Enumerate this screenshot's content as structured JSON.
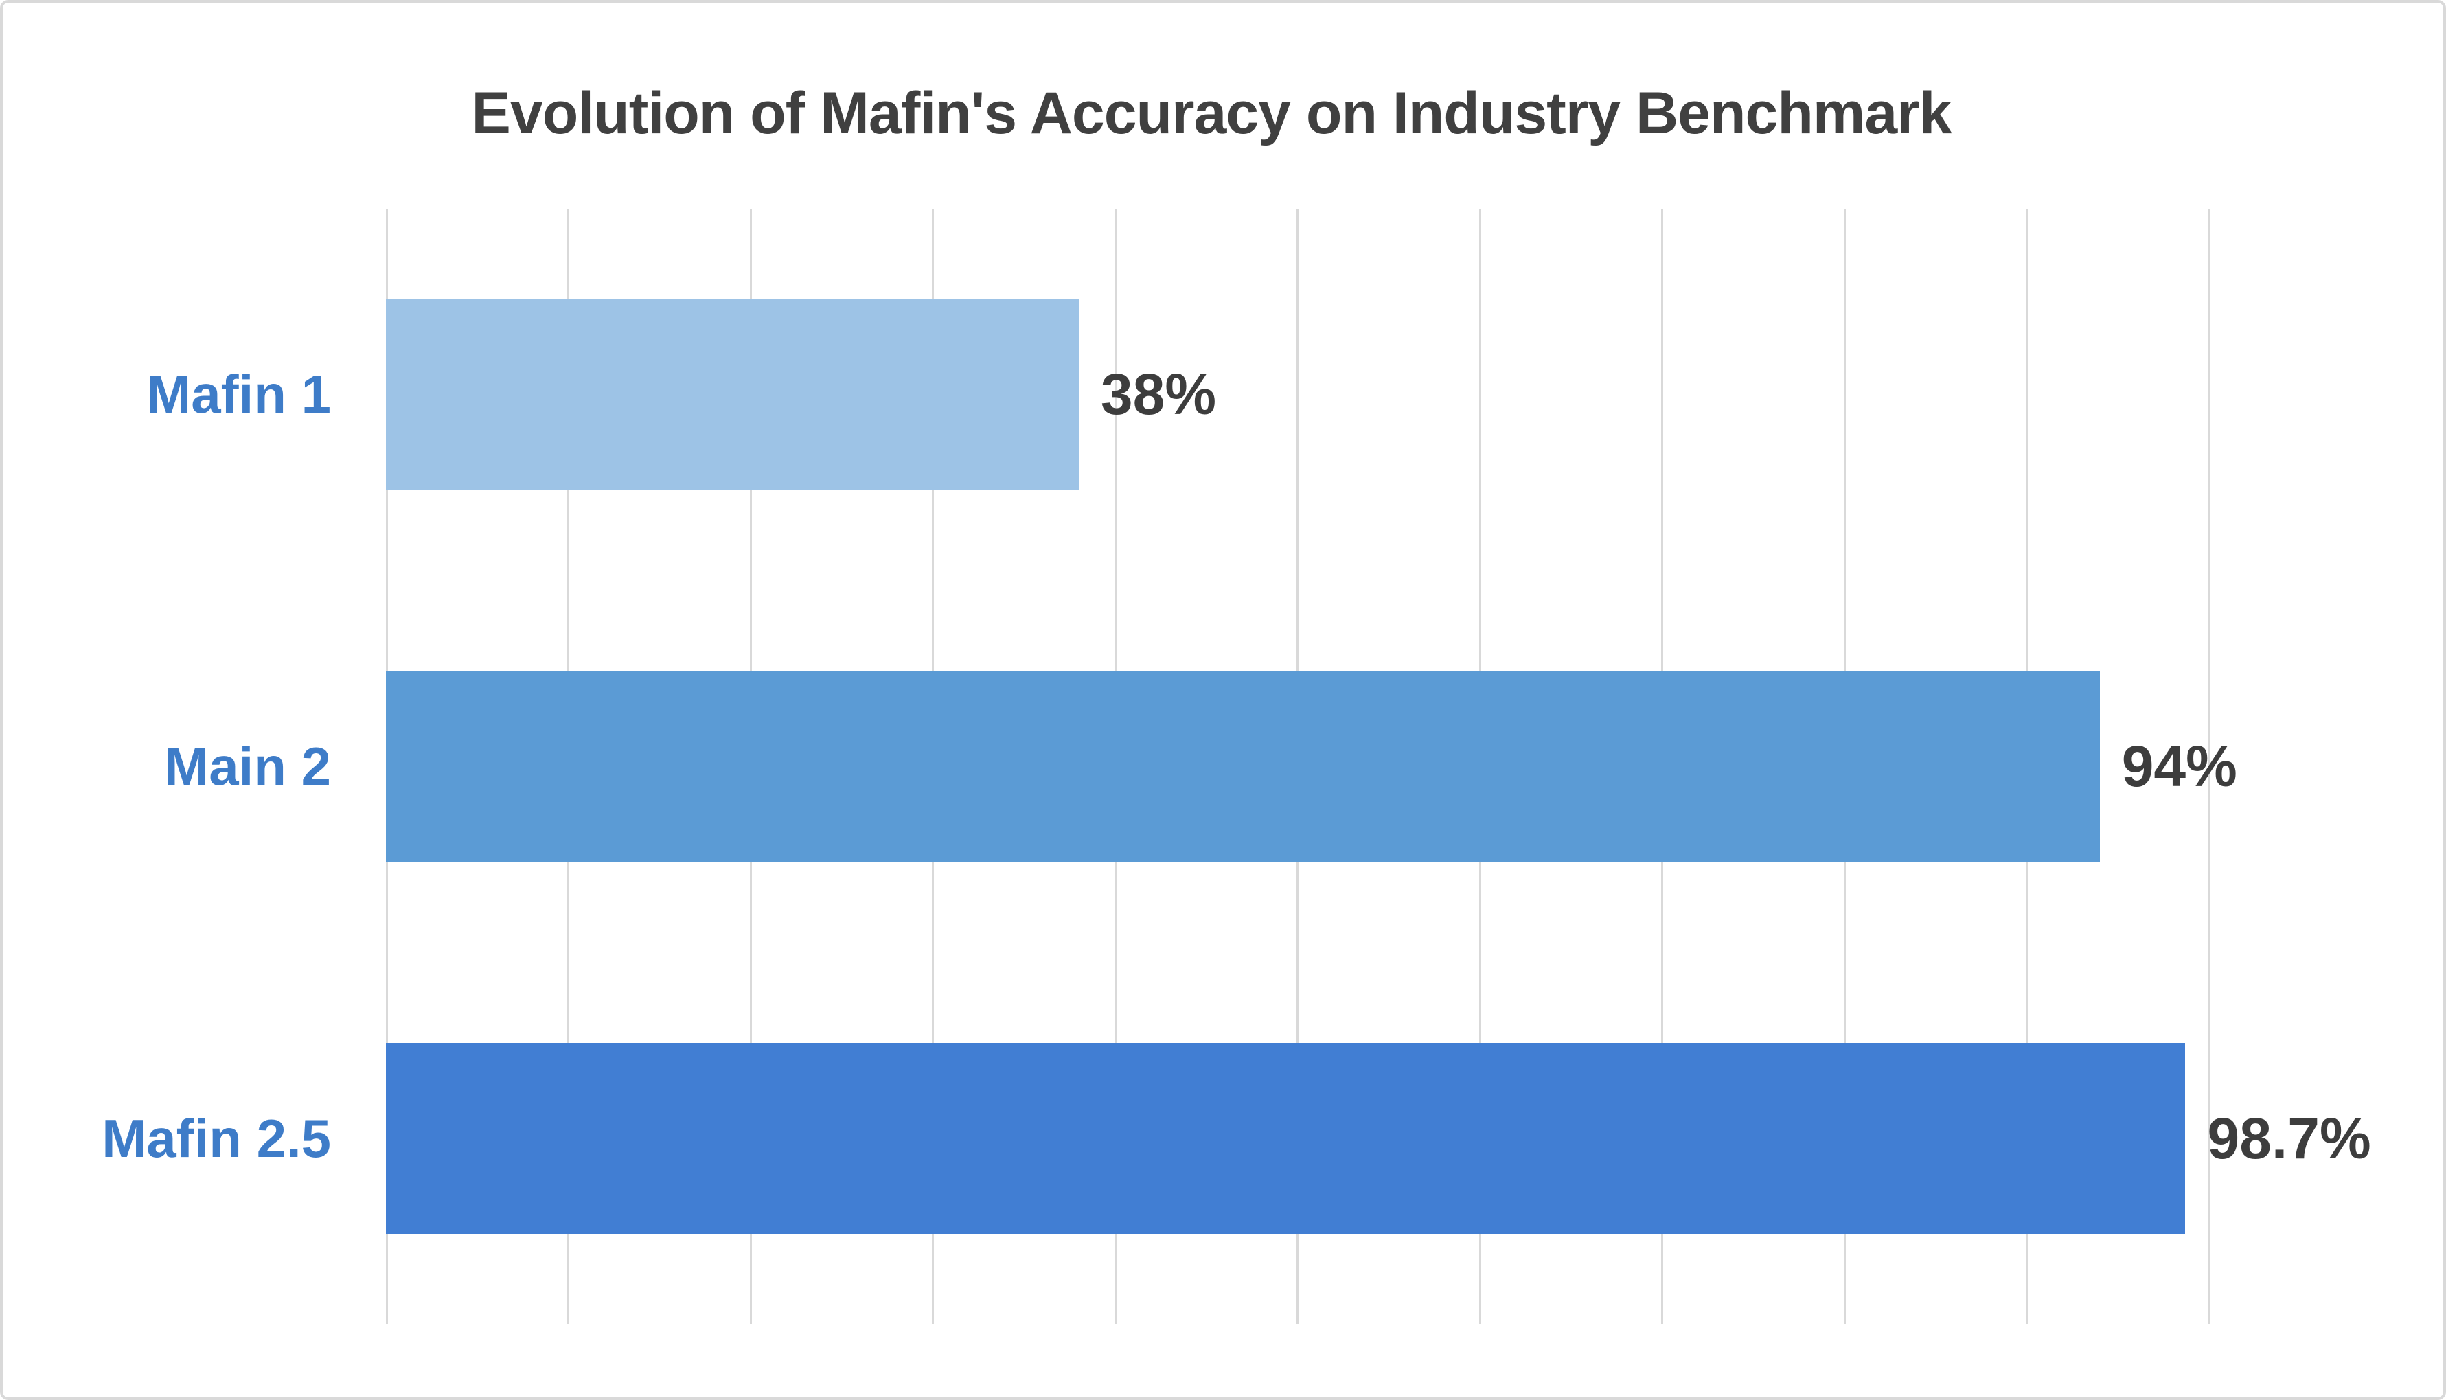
{
  "chart_data": {
    "type": "bar",
    "orientation": "horizontal",
    "title": "Evolution of Mafin's Accuracy on Industry Benchmark",
    "categories": [
      "Mafin 1",
      "Main 2",
      "Mafin 2.5"
    ],
    "values": [
      38,
      94,
      98.7
    ],
    "value_labels": [
      "38%",
      "94%",
      "98.7%"
    ],
    "bar_colors": [
      "#9dc3e6",
      "#5b9bd5",
      "#417ed3"
    ],
    "xlabel": "",
    "ylabel": "",
    "xlim": [
      0,
      100
    ],
    "xticks": [
      0,
      10,
      20,
      30,
      40,
      50,
      60,
      70,
      80,
      90,
      100
    ],
    "grid": "vertical-only",
    "tick_labels_shown": false,
    "legend_position": "none",
    "colors": {
      "title_text": "#404040",
      "category_label_text": "#3e7cc8",
      "value_label_text": "#3d3d3d",
      "gridline": "#d9d9d9",
      "figure_border": "#d9d9d9",
      "background": "#ffffff"
    }
  }
}
